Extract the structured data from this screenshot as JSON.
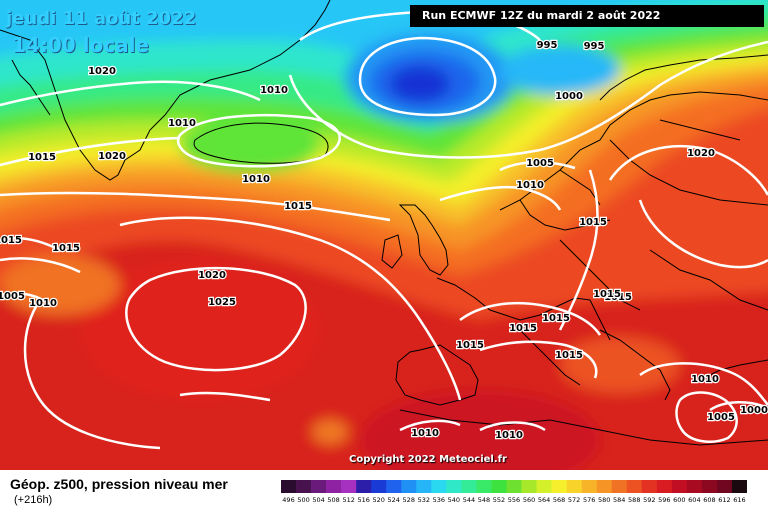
{
  "header": {
    "date_label": "jeudi 11 août 2022",
    "time_label": "14:00 locale",
    "run_label": "Run ECMWF 12Z du mardi 2 août 2022"
  },
  "copyright": "Copyright 2022 Meteociel.fr",
  "footer": {
    "title": "Géop. z500, pression niveau mer",
    "subtitle": "(+216h)"
  },
  "scale": {
    "ticks": [
      "496",
      "500",
      "504",
      "508",
      "512",
      "516",
      "520",
      "524",
      "528",
      "532",
      "536",
      "540",
      "544",
      "548",
      "552",
      "556",
      "560",
      "564",
      "568",
      "572",
      "576",
      "580",
      "584",
      "588",
      "592",
      "596",
      "600",
      "604",
      "608",
      "612",
      "616"
    ],
    "colors": [
      "#2a0d2e",
      "#48124f",
      "#6a1a7a",
      "#8e22a3",
      "#a630c0",
      "#2c1ea8",
      "#1a3ad6",
      "#1f62ee",
      "#2090f5",
      "#26b6f8",
      "#2ad8f0",
      "#2fe8c8",
      "#34ec98",
      "#38ea68",
      "#3ee23e",
      "#6ee030",
      "#a8e82a",
      "#d4f02a",
      "#f6f02c",
      "#f8d42a",
      "#f8b428",
      "#f69426",
      "#f07224",
      "#ec5222",
      "#e43222",
      "#d81c22",
      "#c20e22",
      "#a80a22",
      "#8c0820",
      "#700620",
      "#1a0a10"
    ]
  },
  "isobars": [
    {
      "value": "1020",
      "cls": "p1"
    },
    {
      "value": "1010",
      "cls": "p2"
    },
    {
      "value": "1010",
      "cls": "p3"
    },
    {
      "value": "1020",
      "cls": "p4"
    },
    {
      "value": "1015",
      "cls": "p5"
    },
    {
      "value": "995",
      "cls": "p6"
    },
    {
      "value": "995",
      "cls": "p7"
    },
    {
      "value": "1000",
      "cls": "p8"
    },
    {
      "value": "1005",
      "cls": "p9"
    },
    {
      "value": "1010",
      "cls": "p10"
    },
    {
      "value": "1015",
      "cls": "p11"
    },
    {
      "value": "1010",
      "cls": "p12"
    },
    {
      "value": "1020",
      "cls": "p13"
    },
    {
      "value": "1015",
      "cls": "p14"
    },
    {
      "value": "1015",
      "cls": "p15"
    },
    {
      "value": "1015",
      "cls": "p16"
    },
    {
      "value": "1005",
      "cls": "p17"
    },
    {
      "value": "1010",
      "cls": "p18"
    },
    {
      "value": "1020",
      "cls": "p19"
    },
    {
      "value": "1025",
      "cls": "p20"
    },
    {
      "value": "1015",
      "cls": "p21"
    },
    {
      "value": "1015",
      "cls": "p22"
    },
    {
      "value": "1015",
      "cls": "p23"
    },
    {
      "value": "1015",
      "cls": "p24"
    },
    {
      "value": "1015",
      "cls": "p25"
    },
    {
      "value": "1010",
      "cls": "p26"
    },
    {
      "value": "1010",
      "cls": "p27"
    },
    {
      "value": "1010",
      "cls": "p28"
    },
    {
      "value": "1005",
      "cls": "p29"
    },
    {
      "value": "1000",
      "cls": "p30"
    },
    {
      "value": "1015",
      "cls": "p31"
    }
  ]
}
